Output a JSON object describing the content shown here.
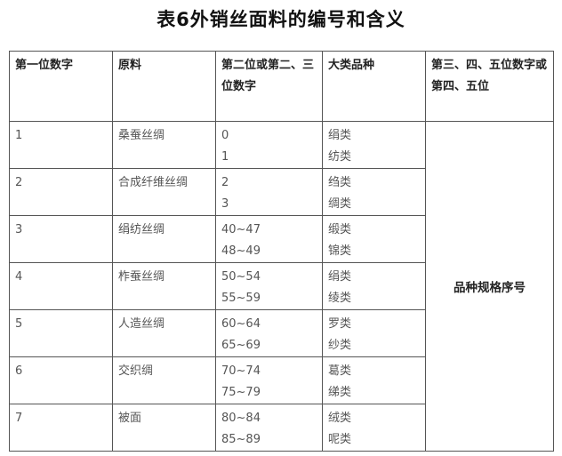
{
  "title": "表6外销丝面料的编号和含义",
  "headers": [
    "第一位数字",
    "原料",
    "第二位或第二、三位数字",
    "大类品种",
    "第三、四、五位数字或第四、五位"
  ],
  "rows": [
    {
      "first": "1",
      "material": "桑蚕丝绸",
      "codes": [
        "0",
        "1"
      ],
      "categories": [
        "绢类",
        "纺类"
      ]
    },
    {
      "first": "2",
      "material": "合成纤维丝绸",
      "codes": [
        "2",
        "3"
      ],
      "categories": [
        "绉类",
        "绸类"
      ]
    },
    {
      "first": "3",
      "material": "绢纺丝绸",
      "codes": [
        "40~47",
        "48~49"
      ],
      "categories": [
        "缎类",
        "锦类"
      ]
    },
    {
      "first": "4",
      "material": "柞蚕丝绸",
      "codes": [
        "50~54",
        "55~59"
      ],
      "categories": [
        "绢类",
        "绫类"
      ]
    },
    {
      "first": "5",
      "material": "人造丝绸",
      "codes": [
        "60~64",
        "65~69"
      ],
      "categories": [
        "罗类",
        "纱类"
      ]
    },
    {
      "first": "6",
      "material": "交织绸",
      "codes": [
        "70~74",
        "75~79"
      ],
      "categories": [
        "葛类",
        "绨类"
      ]
    },
    {
      "first": "7",
      "material": "被面",
      "codes": [
        "80~84",
        "85~89"
      ],
      "categories": [
        "绒类",
        "呢类"
      ]
    }
  ],
  "merged_cell": "品种规格序号"
}
